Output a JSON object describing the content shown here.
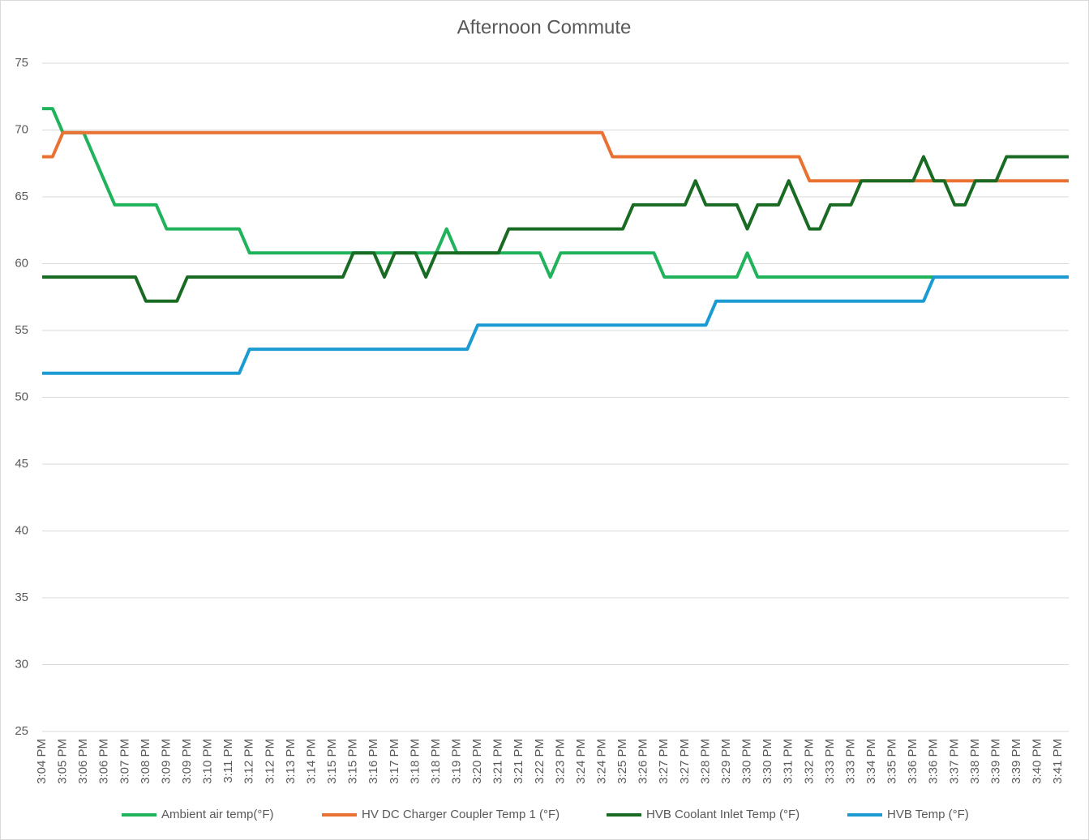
{
  "chart_data": {
    "type": "line",
    "title": "Afternoon Commute",
    "categories": [
      "3:04 PM",
      null,
      "3:05 PM",
      null,
      "3:06 PM",
      null,
      "3:06 PM",
      null,
      "3:07 PM",
      null,
      "3:08 PM",
      null,
      "3:09 PM",
      null,
      "3:09 PM",
      null,
      "3:10 PM",
      null,
      "3:11 PM",
      null,
      "3:12 PM",
      null,
      "3:12 PM",
      null,
      "3:13 PM",
      null,
      "3:14 PM",
      null,
      "3:15 PM",
      null,
      "3:15 PM",
      null,
      "3:16 PM",
      null,
      "3:17 PM",
      null,
      "3:18 PM",
      null,
      "3:18 PM",
      null,
      "3:19 PM",
      null,
      "3:20 PM",
      null,
      "3:21 PM",
      null,
      "3:21 PM",
      null,
      "3:22 PM",
      null,
      "3:23 PM",
      null,
      "3:24 PM",
      null,
      "3:24 PM",
      null,
      "3:25 PM",
      null,
      "3:26 PM",
      null,
      "3:27 PM",
      null,
      "3:27 PM",
      null,
      "3:28 PM",
      null,
      "3:29 PM",
      null,
      "3:30 PM",
      null,
      "3:30 PM",
      null,
      "3:31 PM",
      null,
      "3:32 PM",
      null,
      "3:33 PM",
      null,
      "3:33 PM",
      null,
      "3:34 PM",
      null,
      "3:35 PM",
      null,
      "3:36 PM",
      null,
      "3:36 PM",
      null,
      "3:37 PM",
      null,
      "3:38 PM",
      null,
      "3:39 PM",
      null,
      "3:39 PM",
      null,
      "3:40 PM",
      null,
      "3:41 PM",
      null
    ],
    "series": [
      {
        "name": "Ambient air temp(°F)",
        "color": "#21b25c",
        "values": [
          71.6,
          71.6,
          69.8,
          69.8,
          69.8,
          68,
          66.2,
          64.4,
          64.4,
          64.4,
          64.4,
          64.4,
          62.6,
          62.6,
          62.6,
          62.6,
          62.6,
          62.6,
          62.6,
          62.6,
          60.8,
          60.8,
          60.8,
          60.8,
          60.8,
          60.8,
          60.8,
          60.8,
          60.8,
          60.8,
          60.8,
          60.8,
          60.8,
          60.8,
          60.8,
          60.8,
          60.8,
          60.8,
          60.8,
          62.6,
          60.8,
          60.8,
          60.8,
          60.8,
          60.8,
          60.8,
          60.8,
          60.8,
          60.8,
          59,
          60.8,
          60.8,
          60.8,
          60.8,
          60.8,
          60.8,
          60.8,
          60.8,
          60.8,
          60.8,
          59,
          59,
          59,
          59,
          59,
          59,
          59,
          59,
          60.8,
          59,
          59,
          59,
          59,
          59,
          59,
          59,
          59,
          59,
          59,
          59,
          59,
          59,
          59,
          59,
          59,
          59,
          59,
          59,
          59,
          59,
          59,
          59,
          59,
          59,
          59,
          59,
          59,
          59,
          59,
          59
        ]
      },
      {
        "name": "HV DC Charger Coupler Temp 1 (°F)",
        "color": "#e97132",
        "values": [
          68,
          68,
          69.8,
          69.8,
          69.8,
          69.8,
          69.8,
          69.8,
          69.8,
          69.8,
          69.8,
          69.8,
          69.8,
          69.8,
          69.8,
          69.8,
          69.8,
          69.8,
          69.8,
          69.8,
          69.8,
          69.8,
          69.8,
          69.8,
          69.8,
          69.8,
          69.8,
          69.8,
          69.8,
          69.8,
          69.8,
          69.8,
          69.8,
          69.8,
          69.8,
          69.8,
          69.8,
          69.8,
          69.8,
          69.8,
          69.8,
          69.8,
          69.8,
          69.8,
          69.8,
          69.8,
          69.8,
          69.8,
          69.8,
          69.8,
          69.8,
          69.8,
          69.8,
          69.8,
          69.8,
          68,
          68,
          68,
          68,
          68,
          68,
          68,
          68,
          68,
          68,
          68,
          68,
          68,
          68,
          68,
          68,
          68,
          68,
          68,
          66.2,
          66.2,
          66.2,
          66.2,
          66.2,
          66.2,
          66.2,
          66.2,
          66.2,
          66.2,
          66.2,
          66.2,
          66.2,
          66.2,
          66.2,
          66.2,
          66.2,
          66.2,
          66.2,
          66.2,
          66.2,
          66.2,
          66.2,
          66.2,
          66.2,
          66.2
        ]
      },
      {
        "name": "HVB Coolant Inlet Temp (°F)",
        "color": "#196b24",
        "values": [
          59,
          59,
          59,
          59,
          59,
          59,
          59,
          59,
          59,
          59,
          57.2,
          57.2,
          57.2,
          57.2,
          59,
          59,
          59,
          59,
          59,
          59,
          59,
          59,
          59,
          59,
          59,
          59,
          59,
          59,
          59,
          59,
          60.8,
          60.8,
          60.8,
          59,
          60.8,
          60.8,
          60.8,
          59,
          60.8,
          60.8,
          60.8,
          60.8,
          60.8,
          60.8,
          60.8,
          62.6,
          62.6,
          62.6,
          62.6,
          62.6,
          62.6,
          62.6,
          62.6,
          62.6,
          62.6,
          62.6,
          62.6,
          64.4,
          64.4,
          64.4,
          64.4,
          64.4,
          64.4,
          66.2,
          64.4,
          64.4,
          64.4,
          64.4,
          62.6,
          64.4,
          64.4,
          64.4,
          66.2,
          64.4,
          62.6,
          62.6,
          64.4,
          64.4,
          64.4,
          66.2,
          66.2,
          66.2,
          66.2,
          66.2,
          66.2,
          68,
          66.2,
          66.2,
          64.4,
          64.4,
          66.2,
          66.2,
          66.2,
          68,
          68,
          68,
          68,
          68,
          68,
          68
        ]
      },
      {
        "name": "HVB Temp (°F)",
        "color": "#1b9bd1",
        "values": [
          51.8,
          51.8,
          51.8,
          51.8,
          51.8,
          51.8,
          51.8,
          51.8,
          51.8,
          51.8,
          51.8,
          51.8,
          51.8,
          51.8,
          51.8,
          51.8,
          51.8,
          51.8,
          51.8,
          51.8,
          53.6,
          53.6,
          53.6,
          53.6,
          53.6,
          53.6,
          53.6,
          53.6,
          53.6,
          53.6,
          53.6,
          53.6,
          53.6,
          53.6,
          53.6,
          53.6,
          53.6,
          53.6,
          53.6,
          53.6,
          53.6,
          53.6,
          55.4,
          55.4,
          55.4,
          55.4,
          55.4,
          55.4,
          55.4,
          55.4,
          55.4,
          55.4,
          55.4,
          55.4,
          55.4,
          55.4,
          55.4,
          55.4,
          55.4,
          55.4,
          55.4,
          55.4,
          55.4,
          55.4,
          55.4,
          57.2,
          57.2,
          57.2,
          57.2,
          57.2,
          57.2,
          57.2,
          57.2,
          57.2,
          57.2,
          57.2,
          57.2,
          57.2,
          57.2,
          57.2,
          57.2,
          57.2,
          57.2,
          57.2,
          57.2,
          57.2,
          59,
          59,
          59,
          59,
          59,
          59,
          59,
          59,
          59,
          59,
          59,
          59,
          59,
          59
        ]
      }
    ],
    "ylim": [
      25,
      75
    ],
    "yticks": [
      25,
      30,
      35,
      40,
      45,
      50,
      55,
      60,
      65,
      70,
      75
    ],
    "grid": true,
    "legend": "bottom"
  }
}
